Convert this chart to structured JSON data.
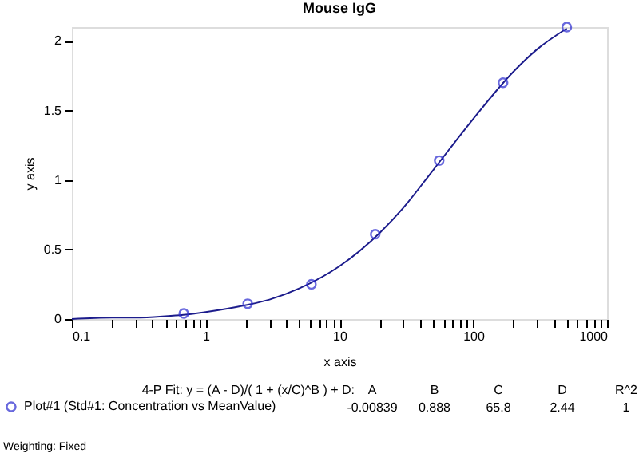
{
  "chart_data": {
    "type": "scatter",
    "title": "Mouse IgG",
    "xlabel": "x axis",
    "ylabel": "y axis",
    "log": "x",
    "grid": false,
    "legend": "bottom",
    "marker": "circle",
    "xlim": [
      0.1,
      1000
    ],
    "ylim": [
      0,
      2.1
    ],
    "xticks": [
      0.1,
      {
        "value": 0.2,
        "label": null
      },
      {
        "value": 0.3,
        "label": null
      },
      {
        "value": 0.4,
        "label": null
      },
      {
        "value": 0.5,
        "label": null
      },
      {
        "value": 0.6,
        "label": null
      },
      {
        "value": 0.7,
        "label": null
      },
      {
        "value": 0.8,
        "label": null
      },
      {
        "value": 0.9,
        "label": null
      },
      1,
      {
        "value": 2,
        "label": null
      },
      {
        "value": 3,
        "label": null
      },
      {
        "value": 4,
        "label": null
      },
      {
        "value": 5,
        "label": null
      },
      {
        "value": 6,
        "label": null
      },
      {
        "value": 7,
        "label": null
      },
      {
        "value": 8,
        "label": null
      },
      {
        "value": 9,
        "label": null
      },
      10,
      {
        "value": 20,
        "label": null
      },
      {
        "value": 30,
        "label": null
      },
      {
        "value": 40,
        "label": null
      },
      {
        "value": 50,
        "label": null
      },
      {
        "value": 60,
        "label": null
      },
      {
        "value": 70,
        "label": null
      },
      {
        "value": 80,
        "label": null
      },
      {
        "value": 90,
        "label": null
      },
      100,
      {
        "value": 200,
        "label": null
      },
      {
        "value": 300,
        "label": null
      },
      {
        "value": 400,
        "label": null
      },
      {
        "value": 500,
        "label": null
      },
      {
        "value": 600,
        "label": null
      },
      {
        "value": 700,
        "label": null
      },
      {
        "value": 800,
        "label": null
      },
      {
        "value": 900,
        "label": null
      },
      1000
    ],
    "yticks": [
      0,
      0.5,
      1,
      1.5,
      2
    ],
    "series": [
      {
        "name": "Plot#1 (Std#1: Concentration vs MeanValue)",
        "color": "#2b2bd0",
        "x": [
          0.686,
          2.06,
          6.17,
          18.5,
          55.6,
          167,
          500
        ],
        "values": [
          0.04,
          0.11,
          0.25,
          0.61,
          1.14,
          1.7,
          2.1
        ]
      },
      {
        "type": "line",
        "color": "#1c1c8c",
        "marker": "none",
        "line_style": "solid",
        "x": [
          0.1,
          0.2,
          0.3,
          0.5,
          0.68,
          1,
          2,
          3,
          5,
          10,
          20,
          30,
          50,
          100,
          200,
          300,
          500
        ],
        "values": [
          0.0,
          0.01,
          0.01,
          0.02,
          0.03,
          0.05,
          0.1,
          0.14,
          0.22,
          0.38,
          0.62,
          0.8,
          1.07,
          1.44,
          1.78,
          1.94,
          2.09
        ]
      }
    ],
    "annotations": [
      "4-P Fit: y = (A - D)/( 1 + (x/C)^B ) + D:",
      "A",
      "B",
      "C",
      "D",
      "R^2",
      "-0.00839",
      "0.888",
      "65.8",
      "2.44",
      "1",
      "Weighting: Fixed"
    ]
  }
}
